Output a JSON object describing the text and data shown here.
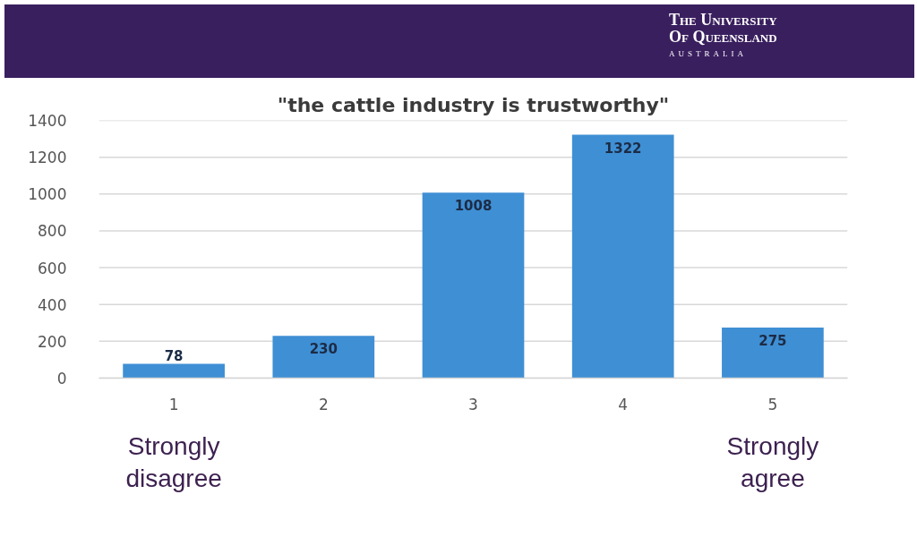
{
  "chart_data": {
    "type": "bar",
    "title": "\"the cattle industry is trustworthy\"",
    "categories": [
      "1",
      "2",
      "3",
      "4",
      "5"
    ],
    "values": [
      78,
      230,
      1008,
      1322,
      275
    ],
    "color": "#3f8fd4",
    "ylim": [
      0,
      1400
    ],
    "yticks": [
      0,
      200,
      400,
      600,
      800,
      1000,
      1200,
      1400
    ],
    "grid": "y",
    "data_labels": true,
    "annotations": [
      "The University Of Queensland",
      "AUSTRALIA",
      "Strongly disagree",
      "Strongly agree"
    ]
  }
}
